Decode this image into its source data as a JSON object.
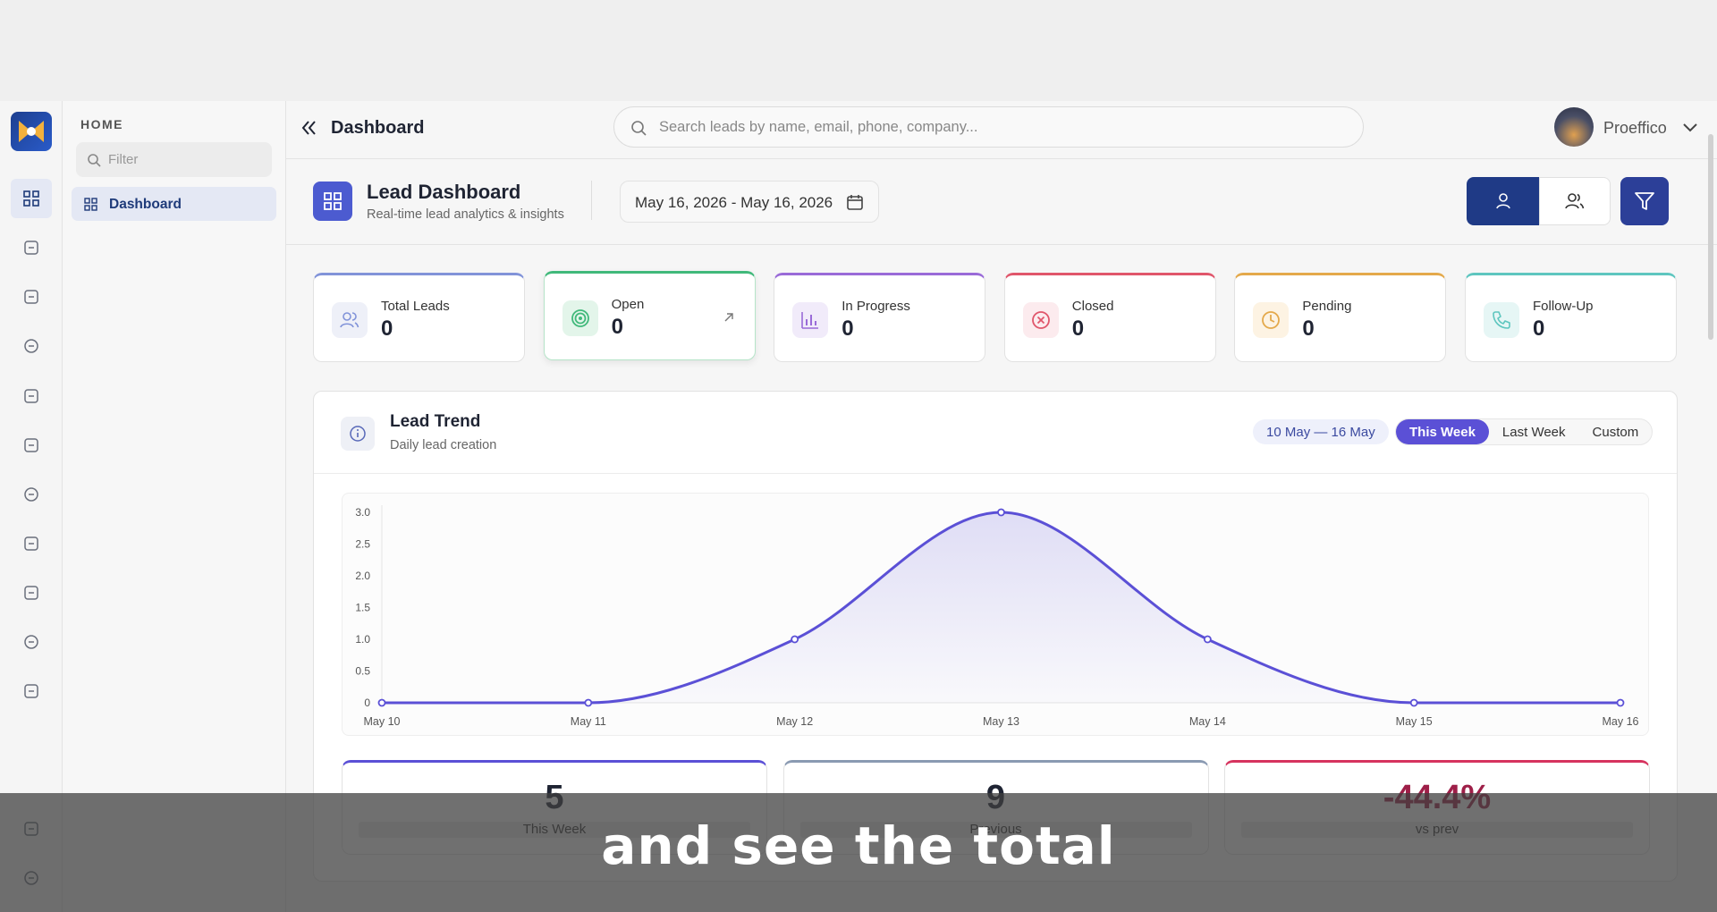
{
  "sidebar": {
    "section": "HOME",
    "filter_placeholder": "Filter",
    "items": [
      "Dashboard"
    ]
  },
  "header": {
    "title": "Dashboard",
    "search_placeholder": "Search leads by name, email, phone, company...",
    "user": "Proeffico"
  },
  "dashboard": {
    "title": "Lead Dashboard",
    "subtitle": "Real-time lead analytics & insights",
    "date_range": "May 16, 2026 - May 16, 2026"
  },
  "stats": [
    {
      "label": "Total Leads",
      "value": "0"
    },
    {
      "label": "Open",
      "value": "0"
    },
    {
      "label": "In Progress",
      "value": "0"
    },
    {
      "label": "Closed",
      "value": "0"
    },
    {
      "label": "Pending",
      "value": "0"
    },
    {
      "label": "Follow-Up",
      "value": "0"
    }
  ],
  "trend": {
    "title": "Lead Trend",
    "subtitle": "Daily lead creation",
    "range": "10 May — 16 May",
    "tabs": [
      "This Week",
      "Last Week",
      "Custom"
    ]
  },
  "summary": [
    {
      "value": "5",
      "label": "This Week"
    },
    {
      "value": "9",
      "label": "Previous"
    },
    {
      "value": "-44.4%",
      "label": "vs prev"
    }
  ],
  "caption": "and see the total",
  "chart_data": {
    "type": "line",
    "categories": [
      "May 10",
      "May 11",
      "May 12",
      "May 13",
      "May 14",
      "May 15",
      "May 16"
    ],
    "values": [
      0,
      0,
      1,
      3,
      1,
      0,
      0
    ],
    "color": "#5b50d6",
    "ylim": [
      0,
      3
    ],
    "yticks": [
      0,
      0.5,
      {
        "value": 1,
        "label": "1.0"
      },
      1.5,
      {
        "value": 2,
        "label": "2.0"
      },
      2.5,
      {
        "value": 3,
        "label": "3.0"
      }
    ],
    "grid": false
  }
}
